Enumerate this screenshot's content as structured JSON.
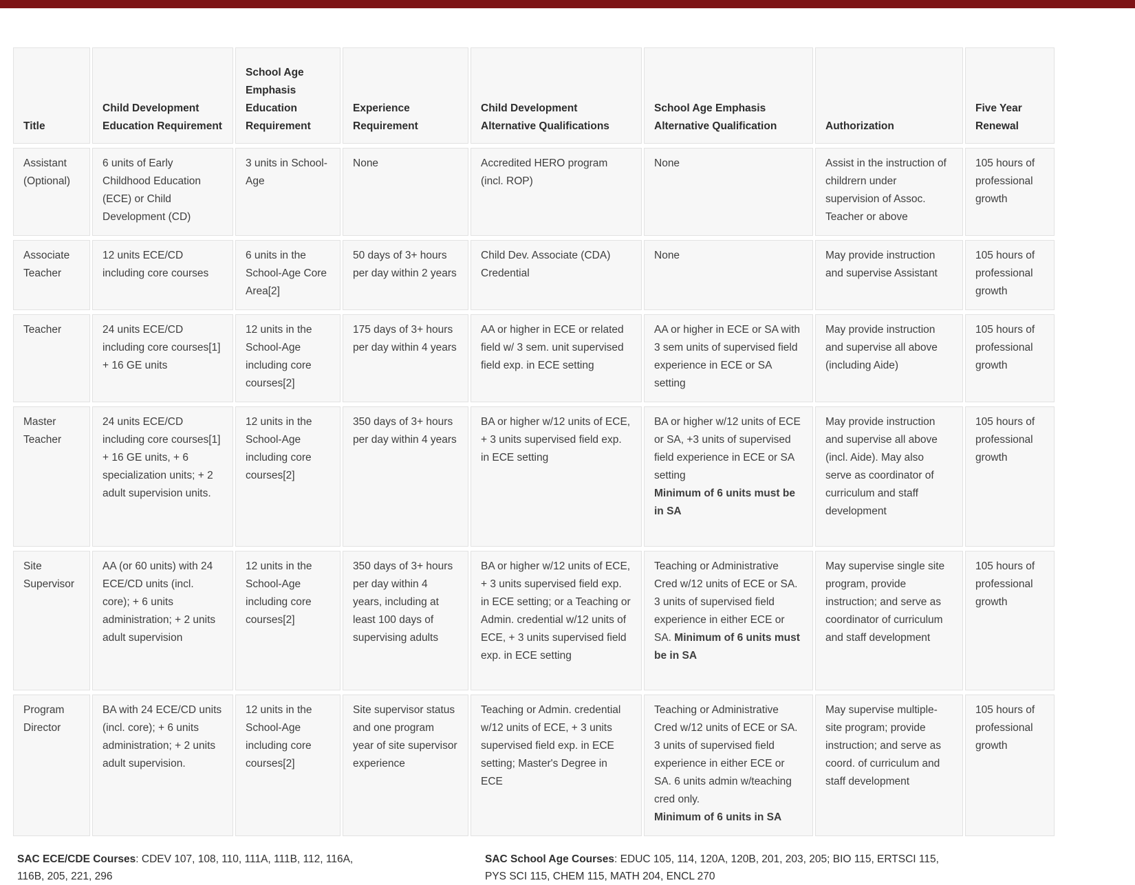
{
  "page": {
    "top_bar_color": "#7d1315",
    "background": "#ffffff",
    "cell_background": "#f7f7f7",
    "cell_border": "#e2e2e2"
  },
  "table": {
    "columns": [
      {
        "id": "title",
        "label": "Title"
      },
      {
        "id": "cd-education-requirement",
        "label": "Child Development Education Requirement"
      },
      {
        "id": "sa-education-requirement",
        "label": "School Age Emphasis Education Requirement"
      },
      {
        "id": "experience-requirement",
        "label": "Experience Requirement"
      },
      {
        "id": "cd-alternative-qualifications",
        "label": "Child Development Alternative Qualifications"
      },
      {
        "id": "sa-alternative-qualification",
        "label": "School Age Emphasis Alternative Qualification"
      },
      {
        "id": "authorization",
        "label": "Authorization"
      },
      {
        "id": "five-year-renewal",
        "label": "Five Year Renewal"
      }
    ],
    "rows": [
      {
        "cells": [
          [
            {
              "text": "Assistant (Optional)"
            }
          ],
          [
            {
              "text": "6 units of Early Childhood Education (ECE) or Child Development (CD)"
            }
          ],
          [
            {
              "text": "3 units in School-Age"
            }
          ],
          [
            {
              "text": "None"
            }
          ],
          [
            {
              "text": "Accredited HERO program (incl. ROP)"
            }
          ],
          [
            {
              "text": "None"
            }
          ],
          [
            {
              "text": "Assist in the instruction of childrern under supervision of Assoc. Teacher or above"
            }
          ],
          [
            {
              "text": "105 hours of professional growth"
            }
          ]
        ]
      },
      {
        "cells": [
          [
            {
              "text": "Associate Teacher"
            }
          ],
          [
            {
              "text": "12 units ECE/CD including core courses"
            }
          ],
          [
            {
              "text": "6 units in the School-Age Core Area[2]"
            }
          ],
          [
            {
              "text": "50 days of 3+ hours per day within 2 years"
            }
          ],
          [
            {
              "text": "Child Dev. Associate (CDA) Credential"
            }
          ],
          [
            {
              "text": "None"
            }
          ],
          [
            {
              "text": "May provide instruction and supervise Assistant"
            }
          ],
          [
            {
              "text": "105 hours of professional growth"
            }
          ]
        ]
      },
      {
        "cells": [
          [
            {
              "text": "Teacher"
            }
          ],
          [
            {
              "text": "24 units ECE/CD including core courses[1] + 16 GE units"
            }
          ],
          [
            {
              "text": "12 units in the School-Age including core courses[2]"
            }
          ],
          [
            {
              "text": "175 days of 3+ hours per day within 4 years"
            }
          ],
          [
            {
              "text": "AA or higher in ECE or related field w/ 3 sem. unit supervised field exp. in ECE setting"
            }
          ],
          [
            {
              "text": "AA or higher in ECE or SA with 3 sem units of supervised field experience in ECE or SA setting"
            }
          ],
          [
            {
              "text": "May provide instruction and supervise all above (including Aide)"
            }
          ],
          [
            {
              "text": "105 hours of professional growth"
            }
          ]
        ]
      },
      {
        "cells": [
          [
            {
              "text": "Master Teacher"
            }
          ],
          [
            {
              "text": "24 units ECE/CD including core courses[1] + 16 GE units, + 6 specialization units; + 2 adult supervision units."
            }
          ],
          [
            {
              "text": "12 units in the School-Age including core courses[2]"
            }
          ],
          [
            {
              "text": "350 days of 3+ hours per day within 4 years"
            }
          ],
          [
            {
              "text": "BA or higher w/12 units of ECE, + 3 units supervised field exp. in ECE setting"
            }
          ],
          [
            {
              "text": "BA or higher w/12 units of ECE or SA, +3 units of supervised field experience in ECE or SA setting"
            },
            {
              "text": "Minimum of 6 units must be in SA",
              "bold": true,
              "br": true
            }
          ],
          [
            {
              "text": "May provide instruction and supervise all above (incl. Aide). May also serve as coordinator of curriculum and staff development"
            }
          ],
          [
            {
              "text": "105 hours of professional growth"
            }
          ]
        ]
      },
      {
        "cells": [
          [
            {
              "text": "Site Supervisor"
            }
          ],
          [
            {
              "text": "AA (or 60 units) with 24 ECE/CD units (incl. core); + 6 units administration; + 2 units adult supervision"
            }
          ],
          [
            {
              "text": "12 units in the School-Age including core courses[2]"
            }
          ],
          [
            {
              "text": "350 days of 3+ hours per day within 4 years, including at least 100 days of supervising adults"
            }
          ],
          [
            {
              "text": "BA or higher w/12 units of ECE, + 3 units supervised field exp. in ECE setting; or a Teaching or Admin. credential w/12 units of ECE, + 3 units supervised field exp. in ECE setting"
            }
          ],
          [
            {
              "text": "Teaching or Administrative Cred w/12 units of ECE or SA. 3 units of supervised field experience in either ECE or SA. "
            },
            {
              "text": "Minimum of 6 units must be in SA",
              "bold": true
            }
          ],
          [
            {
              "text": "May supervise single site program, provide instruction; and serve as coordinator of curriculum and staff development"
            }
          ],
          [
            {
              "text": "105 hours of professional growth"
            }
          ]
        ]
      },
      {
        "cells": [
          [
            {
              "text": "Program Director"
            }
          ],
          [
            {
              "text": "BA with 24 ECE/CD units (incl. core); + 6 units administration; + 2 units adult supervision."
            }
          ],
          [
            {
              "text": "12 units in the School-Age including core courses[2]"
            }
          ],
          [
            {
              "text": "Site supervisor status and one program year of site supervisor experience"
            }
          ],
          [
            {
              "text": "Teaching or Admin. credential w/12 units of ECE, + 3 units supervised field exp. in ECE setting; Master's Degree in ECE"
            }
          ],
          [
            {
              "text": "Teaching or Administrative Cred w/12 units of ECE or SA. 3 units of supervised field experience in either ECE or SA. 6 units admin w/teaching cred only."
            },
            {
              "text": "Minimum of 6 units in SA",
              "bold": true,
              "br": true
            }
          ],
          [
            {
              "text": "May supervise multiple-site program; provide instruction; and serve as coord. of curriculum and staff development"
            }
          ],
          [
            {
              "text": "105 hours of professional growth"
            }
          ]
        ]
      }
    ]
  },
  "footnotes": {
    "left": {
      "label": "SAC ECE/CDE Courses",
      "line1": ": CDEV 107,  108,  110, 111A,  111B,  112, 116A,",
      "line2": "116B, 205,  221,  296"
    },
    "right": {
      "label": "SAC School Age Courses",
      "line1": ": EDUC 105,  114, 120A,  120B,  201, 203,  205; BIO 115,  ERTSCI 115,",
      "line2": "PYS SCI 115,  CHEM 115,  MATH 204,  ENCL 270"
    }
  }
}
